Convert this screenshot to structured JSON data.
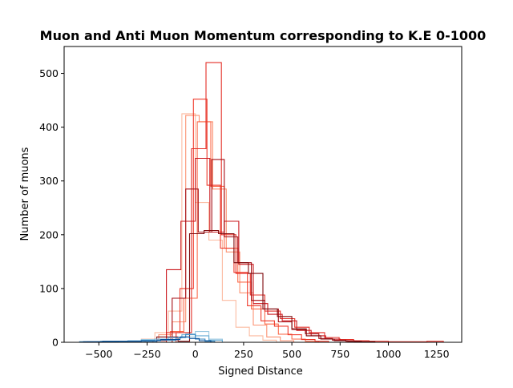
{
  "chart_data": {
    "type": "histogram-step",
    "title": "Muon and Anti Muon Momentum corresponding to K.E 0-1000",
    "xlabel": "Signed Distance",
    "ylabel": "Number of muons",
    "xlim": [
      -680,
      1380
    ],
    "ylim": [
      0,
      550
    ],
    "xticks": [
      -500,
      -250,
      0,
      250,
      500,
      750,
      1000,
      1250
    ],
    "xtick_labels": [
      "−500",
      "−250",
      "0",
      "250",
      "500",
      "750",
      "1000",
      "1250"
    ],
    "yticks": [
      0,
      100,
      200,
      300,
      400,
      500
    ],
    "ytick_labels": [
      "0",
      "100",
      "200",
      "300",
      "400",
      "500"
    ],
    "grid": false,
    "legend": "none",
    "series": [
      {
        "color": "#fcbba1",
        "edges": [
          -350,
          -280,
          -210,
          -140,
          -70,
          0,
          70,
          140,
          210,
          280,
          350,
          420
        ],
        "counts": [
          2,
          6,
          18,
          58,
          425,
          260,
          190,
          78,
          28,
          12,
          4
        ]
      },
      {
        "color": "#fc9272",
        "edges": [
          -260,
          -190,
          -120,
          -50,
          20,
          90,
          160,
          230,
          300,
          370,
          440,
          510
        ],
        "counts": [
          3,
          14,
          38,
          422,
          410,
          285,
          168,
          92,
          32,
          10,
          3
        ]
      },
      {
        "color": "#fb6a4a",
        "edges": [
          -200,
          -130,
          -60,
          10,
          80,
          150,
          220,
          290,
          360,
          430,
          500,
          570,
          640
        ],
        "counts": [
          4,
          20,
          82,
          410,
          290,
          175,
          112,
          62,
          34,
          15,
          6,
          2
        ]
      },
      {
        "color": "#ef3b2c",
        "edges": [
          -220,
          -150,
          -80,
          -10,
          60,
          130,
          200,
          270,
          340,
          410,
          480,
          550,
          620,
          690
        ],
        "counts": [
          3,
          18,
          100,
          452,
          292,
          175,
          130,
          68,
          40,
          30,
          14,
          5,
          2
        ]
      },
      {
        "color": "#e32f27",
        "edges": [
          -100,
          -20,
          55,
          135,
          210,
          285,
          360,
          440,
          515,
          590,
          670,
          745,
          820,
          900,
          1000,
          1100,
          1200,
          1285
        ],
        "counts": [
          18,
          360,
          520,
          200,
          128,
          88,
          58,
          44,
          28,
          18,
          9,
          5,
          3,
          2,
          1,
          1,
          2
        ]
      },
      {
        "color": "#cb181d",
        "edges": [
          -150,
          -75,
          0,
          75,
          150,
          225,
          300,
          375,
          450,
          525,
          600,
          675,
          750,
          825,
          900
        ],
        "counts": [
          135,
          225,
          342,
          205,
          225,
          145,
          72,
          52,
          40,
          22,
          12,
          6,
          3,
          1
        ]
      },
      {
        "color": "#a50f15",
        "edges": [
          -120,
          -50,
          15,
          85,
          150,
          220,
          290,
          360,
          430,
          500,
          570,
          640,
          710,
          780,
          850
        ],
        "counts": [
          82,
          285,
          205,
          340,
          196,
          148,
          78,
          62,
          38,
          24,
          16,
          7,
          4,
          2
        ]
      },
      {
        "color": "#7f0a0d",
        "edges": [
          -200,
          -90,
          -30,
          45,
          120,
          200,
          275,
          350,
          425,
          500,
          575,
          650,
          720,
          790,
          860,
          930
        ],
        "counts": [
          10,
          2,
          202,
          208,
          202,
          148,
          128,
          62,
          48,
          25,
          12,
          6,
          3,
          2,
          1
        ]
      },
      {
        "color": "#9ecae1",
        "edges": [
          -420,
          -350,
          -280,
          -210,
          -140,
          -70,
          0,
          70,
          140
        ],
        "counts": [
          2,
          3,
          5,
          6,
          8,
          10,
          20,
          6
        ]
      },
      {
        "color": "#6baed6",
        "edges": [
          -560,
          -490,
          -420,
          -350,
          -280,
          -210,
          -140,
          -70,
          0,
          70,
          140
        ],
        "counts": [
          1,
          2,
          2,
          3,
          4,
          6,
          9,
          14,
          12,
          4
        ]
      },
      {
        "color": "#3182bd",
        "edges": [
          -600,
          -500,
          -400,
          -300,
          -200,
          -100,
          -50,
          0,
          50,
          100
        ],
        "counts": [
          1,
          1,
          2,
          2,
          4,
          9,
          15,
          6,
          2
        ]
      },
      {
        "color": "#08519c",
        "edges": [
          -580,
          -480,
          -380,
          -280,
          -180,
          -80,
          -30,
          20,
          80
        ],
        "counts": [
          1,
          2,
          2,
          3,
          5,
          10,
          7,
          3
        ]
      }
    ]
  }
}
